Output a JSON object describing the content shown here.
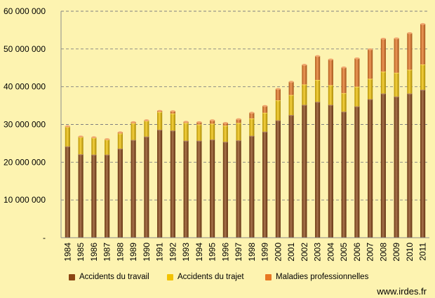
{
  "chart_data": {
    "type": "bar",
    "stacked": true,
    "categories": [
      "1984",
      "1985",
      "1986",
      "1987",
      "1988",
      "1989",
      "1990",
      "1991",
      "1992",
      "1993",
      "1994",
      "1995",
      "1996",
      "1997",
      "1998",
      "1999",
      "2000",
      "2001",
      "2002",
      "2003",
      "2004",
      "2005",
      "2006",
      "2007",
      "2008",
      "2009",
      "2010",
      "2011"
    ],
    "series": [
      {
        "name": "Accidents du travail",
        "color": "#8B4513",
        "values": [
          24200000,
          22100000,
          22000000,
          22000000,
          23600000,
          25900000,
          26800000,
          28600000,
          28400000,
          25700000,
          25700000,
          26000000,
          25400000,
          25800000,
          27000000,
          28100000,
          31100000,
          32500000,
          35200000,
          36000000,
          35200000,
          33400000,
          34800000,
          36700000,
          38200000,
          37400000,
          38200000,
          39200000
        ]
      },
      {
        "name": "Accidents du trajet",
        "color": "#F2C200",
        "values": [
          5200000,
          4600000,
          4500000,
          4000000,
          4000000,
          4400000,
          4200000,
          4700000,
          4500000,
          4700000,
          4300000,
          4200000,
          4300000,
          4600000,
          4600000,
          5000000,
          5300000,
          5300000,
          5400000,
          5800000,
          5200000,
          4900000,
          5200000,
          5400000,
          5800000,
          6300000,
          6300000,
          6700000
        ]
      },
      {
        "name": "Maladies professionnelles",
        "color": "#E87722",
        "values": [
          100000,
          100000,
          100000,
          100000,
          300000,
          300000,
          100000,
          300000,
          600000,
          300000,
          600000,
          900000,
          700000,
          1000000,
          1500000,
          1800000,
          3000000,
          3500000,
          5200000,
          6300000,
          6800000,
          6800000,
          7500000,
          7800000,
          8700000,
          9100000,
          9700000,
          10700000
        ]
      }
    ],
    "title": "",
    "xlabel": "",
    "ylabel": "",
    "ylim": [
      0,
      60000000
    ],
    "yticks": [
      0,
      10000000,
      20000000,
      30000000,
      40000000,
      50000000,
      60000000
    ],
    "ytick_labels": [
      "-",
      "10 000 000",
      "20 000 000",
      "30 000 000",
      "40 000 000",
      "50 000 000",
      "60 000 000"
    ],
    "grid": true,
    "legend_position": "bottom"
  },
  "footer": {
    "source_text": "www.irdes.fr"
  }
}
